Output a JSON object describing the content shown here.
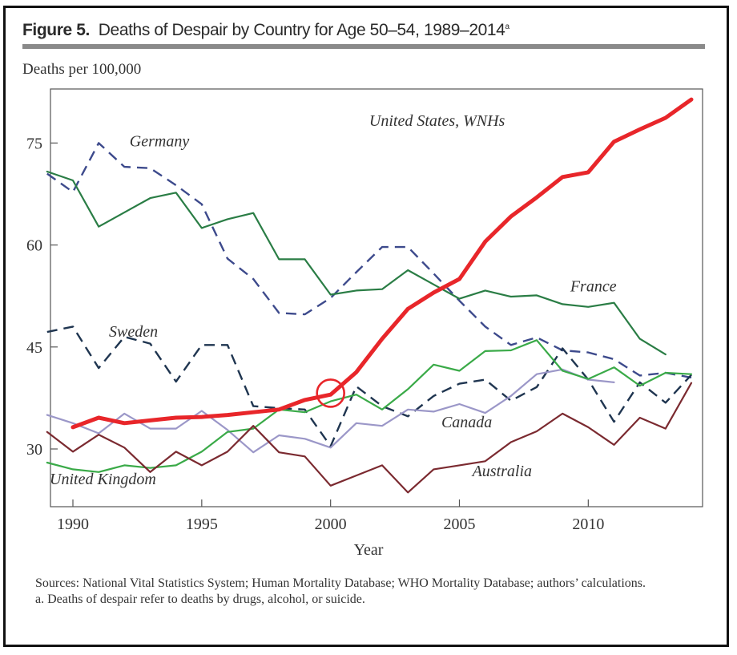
{
  "figure": {
    "number_label": "Figure 5.",
    "title_text": "Deaths of Despair by Country for Age 50–54, 1989–2014",
    "title_superscript": "a",
    "y_unit_label": "Deaths per 100,000",
    "sources": "Sources: National Vital Statistics System; Human Mortality Database; WHO Mortality Database; authors’ calculations.",
    "note": "a. Deaths of despair refer to deaths by drugs, alcohol, or suicide."
  },
  "chart_data": {
    "type": "line",
    "title": "Deaths of Despair by Country for Age 50–54, 1989–2014",
    "xlabel": "Year",
    "ylabel": "Deaths per 100,000",
    "xlim": [
      1989,
      2014
    ],
    "ylim": [
      22,
      82
    ],
    "xticks": [
      1990,
      1995,
      2000,
      2005,
      2010
    ],
    "yticks": [
      30,
      45,
      60,
      75
    ],
    "grid": false,
    "legend": "inline labels",
    "annotations": [
      {
        "type": "circle",
        "x": 2000,
        "y": 38.2,
        "color": "#e8262a",
        "note": "highlight on United States, WNHs at 2000"
      }
    ],
    "series": [
      {
        "name": "United States, WNHs",
        "label": "United States, WNHs",
        "color": "#e8262a",
        "style": "solid-thick",
        "x": [
          1990,
          1991,
          1992,
          1993,
          1994,
          1995,
          1996,
          1997,
          1998,
          1999,
          2000,
          2001,
          2002,
          2003,
          2004,
          2005,
          2006,
          2007,
          2008,
          2009,
          2010,
          2011,
          2012,
          2013,
          2014
        ],
        "values": [
          33.2,
          34.6,
          33.8,
          34.2,
          34.6,
          34.7,
          35.0,
          35.4,
          35.8,
          37.2,
          38.0,
          41.3,
          46.2,
          50.6,
          53.0,
          55.0,
          60.5,
          64.2,
          67.0,
          70.0,
          70.7,
          75.2,
          77.0,
          78.7,
          81.4
        ]
      },
      {
        "name": "Germany",
        "label": "Germany",
        "color": "#3d4a8c",
        "style": "dashed",
        "x": [
          1989,
          1990,
          1991,
          1992,
          1993,
          1994,
          1995,
          1996,
          1997,
          1998,
          1999,
          2000,
          2001,
          2002,
          2003,
          2004,
          2005,
          2006,
          2007,
          2008,
          2009,
          2010,
          2011,
          2012,
          2013,
          2014
        ],
        "values": [
          70.5,
          67.8,
          75.0,
          71.5,
          71.3,
          68.8,
          66.0,
          58.0,
          55.0,
          50.0,
          49.8,
          52.2,
          56.0,
          59.7,
          59.7,
          55.8,
          51.8,
          48.0,
          45.3,
          46.4,
          44.5,
          44.2,
          43.2,
          40.8,
          41.2,
          40.5
        ]
      },
      {
        "name": "France",
        "label": "France",
        "color": "#2a7d45",
        "style": "solid",
        "x": [
          1989,
          1990,
          1991,
          1992,
          1993,
          1994,
          1995,
          1996,
          1997,
          1998,
          1999,
          2000,
          2001,
          2002,
          2003,
          2004,
          2005,
          2006,
          2007,
          2008,
          2009,
          2010,
          2011,
          2012,
          2013
        ],
        "values": [
          70.8,
          69.5,
          62.7,
          64.8,
          66.9,
          67.7,
          62.5,
          63.8,
          64.7,
          57.9,
          57.9,
          52.7,
          53.3,
          53.5,
          56.3,
          54.2,
          52.1,
          53.3,
          52.4,
          52.6,
          51.3,
          50.9,
          51.5,
          46.2,
          43.9
        ]
      },
      {
        "name": "Sweden",
        "label": "Sweden",
        "color": "#1f3550",
        "style": "dashed",
        "x": [
          1989,
          1990,
          1991,
          1992,
          1993,
          1994,
          1995,
          1996,
          1997,
          1998,
          1999,
          2000,
          2001,
          2002,
          2003,
          2004,
          2005,
          2006,
          2007,
          2008,
          2009,
          2010,
          2011,
          2012,
          2013,
          2014
        ],
        "values": [
          47.2,
          48.0,
          41.9,
          46.5,
          45.5,
          39.9,
          45.3,
          45.3,
          36.3,
          36.0,
          35.8,
          30.4,
          39.2,
          36.3,
          34.8,
          37.8,
          39.6,
          40.2,
          37.1,
          39.1,
          44.8,
          40.2,
          34.0,
          39.8,
          36.8,
          40.9
        ]
      },
      {
        "name": "Canada",
        "label": "Canada",
        "color": "#9b97c8",
        "style": "solid",
        "x": [
          1989,
          1990,
          1991,
          1992,
          1993,
          1994,
          1995,
          1996,
          1997,
          1998,
          1999,
          2000,
          2001,
          2002,
          2003,
          2004,
          2005,
          2006,
          2007,
          2008,
          2009,
          2010,
          2011
        ],
        "values": [
          35.0,
          33.8,
          32.3,
          35.2,
          33.0,
          33.0,
          35.6,
          32.8,
          29.5,
          32.0,
          31.5,
          30.2,
          33.8,
          33.4,
          35.8,
          35.5,
          36.6,
          35.3,
          37.8,
          41.0,
          41.7,
          40.2,
          39.8
        ]
      },
      {
        "name": "United Kingdom",
        "label": "United Kingdom",
        "color": "#3aaa48",
        "style": "solid",
        "x": [
          1989,
          1990,
          1991,
          1992,
          1993,
          1994,
          1995,
          1996,
          1997,
          1998,
          1999,
          2000,
          2001,
          2002,
          2003,
          2004,
          2005,
          2006,
          2007,
          2008,
          2009,
          2010,
          2011,
          2012,
          2013,
          2014
        ],
        "values": [
          28.0,
          27.0,
          26.6,
          27.6,
          27.2,
          27.6,
          29.6,
          32.5,
          33.0,
          35.8,
          35.4,
          37.0,
          38.0,
          35.8,
          38.8,
          42.4,
          41.5,
          44.4,
          44.5,
          46.0,
          41.5,
          40.3,
          42.0,
          39.3,
          41.2,
          41.0
        ]
      },
      {
        "name": "Australia",
        "label": "Australia",
        "color": "#7b2a30",
        "style": "solid",
        "x": [
          1989,
          1990,
          1991,
          1992,
          1993,
          1994,
          1995,
          1996,
          1997,
          1998,
          1999,
          2000,
          2001,
          2002,
          2003,
          2004,
          2005,
          2006,
          2007,
          2008,
          2009,
          2010,
          2011,
          2012,
          2013,
          2014
        ],
        "values": [
          32.5,
          29.6,
          32.1,
          30.2,
          26.6,
          29.6,
          27.6,
          29.6,
          33.4,
          29.5,
          28.9,
          24.6,
          26.1,
          27.6,
          23.6,
          27.0,
          27.6,
          28.2,
          31.0,
          32.6,
          35.2,
          33.2,
          30.6,
          34.6,
          33.0,
          39.7
        ]
      }
    ]
  }
}
